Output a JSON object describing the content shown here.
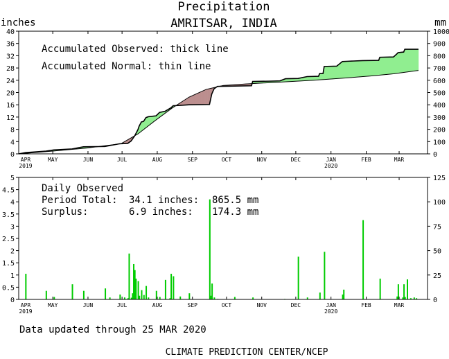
{
  "header": {
    "title": "Precipitation",
    "subtitle": "AMRITSAR, INDIA",
    "left_unit": "inches",
    "right_unit": "mm"
  },
  "months": {
    "labels": [
      "APR",
      "MAY",
      "JUN",
      "JUL",
      "AUG",
      "SEP",
      "OCT",
      "NOV",
      "DEC",
      "JAN",
      "FEB",
      "MAR"
    ],
    "start_year": "2019",
    "jan_year": "2020"
  },
  "chart_data": [
    {
      "type": "area",
      "name": "accumulated",
      "legend": [
        "Accumulated Observed: thick line",
        "Accumulated Normal: thin line"
      ],
      "x_unit": "day index from APR 1 2019",
      "xlim": [
        0,
        360
      ],
      "ylim": [
        0,
        40
      ],
      "ylim_right_mm": [
        0,
        1000
      ],
      "yticks_left": [
        0,
        4,
        8,
        12,
        16,
        20,
        24,
        28,
        32,
        36,
        40
      ],
      "yticks_right": [
        0,
        100,
        200,
        300,
        400,
        500,
        600,
        700,
        800,
        900,
        1000
      ],
      "observed": [
        [
          0,
          0.0
        ],
        [
          6,
          0.4
        ],
        [
          24,
          0.9
        ],
        [
          31,
          1.3
        ],
        [
          47,
          1.6
        ],
        [
          57,
          2.3
        ],
        [
          76,
          2.4
        ],
        [
          89,
          3.3
        ],
        [
          96,
          3.4
        ],
        [
          99,
          4.2
        ],
        [
          102,
          5.8
        ],
        [
          103,
          6.5
        ],
        [
          105,
          7.9
        ],
        [
          106,
          9.0
        ],
        [
          108,
          10.4
        ],
        [
          110,
          10.6
        ],
        [
          112,
          11.8
        ],
        [
          114,
          12.1
        ],
        [
          121,
          12.4
        ],
        [
          124,
          13.5
        ],
        [
          129,
          13.9
        ],
        [
          134,
          15.0
        ],
        [
          136,
          15.7
        ],
        [
          142,
          15.8
        ],
        [
          150,
          16.0
        ],
        [
          168,
          16.1
        ],
        [
          170,
          19.5
        ],
        [
          172,
          21.2
        ],
        [
          175,
          22.0
        ],
        [
          190,
          22.1
        ],
        [
          205,
          22.2
        ],
        [
          206,
          23.6
        ],
        [
          220,
          23.7
        ],
        [
          230,
          23.8
        ],
        [
          235,
          24.5
        ],
        [
          246,
          24.6
        ],
        [
          254,
          25.2
        ],
        [
          264,
          25.3
        ],
        [
          265,
          26.2
        ],
        [
          268,
          26.2
        ],
        [
          269,
          28.5
        ],
        [
          280,
          28.6
        ],
        [
          285,
          30.1
        ],
        [
          290,
          30.2
        ],
        [
          303,
          30.4
        ],
        [
          317,
          30.5
        ],
        [
          318,
          31.5
        ],
        [
          330,
          31.6
        ],
        [
          333,
          32.6
        ],
        [
          334,
          33.0
        ],
        [
          339,
          33.2
        ],
        [
          340,
          34.1
        ],
        [
          352,
          34.1
        ]
      ],
      "normal": [
        [
          0,
          0.0
        ],
        [
          30,
          0.9
        ],
        [
          60,
          1.9
        ],
        [
          90,
          3.3
        ],
        [
          105,
          6.5
        ],
        [
          120,
          10.8
        ],
        [
          135,
          14.9
        ],
        [
          150,
          18.5
        ],
        [
          165,
          21.0
        ],
        [
          180,
          22.3
        ],
        [
          200,
          22.8
        ],
        [
          230,
          23.4
        ],
        [
          260,
          24.0
        ],
        [
          290,
          24.8
        ],
        [
          310,
          25.4
        ],
        [
          330,
          26.1
        ],
        [
          352,
          27.2
        ]
      ]
    },
    {
      "type": "bar",
      "name": "daily",
      "legend_title": "Daily Observed",
      "period_total_label": "Period Total:",
      "period_total_inches": "34.1 inches:",
      "period_total_mm": "865.5 mm",
      "surplus_label": "Surplus:",
      "surplus_inches": "6.9 inches:",
      "surplus_mm": "174.3 mm",
      "ylim": [
        0,
        5
      ],
      "ylim_right_mm": [
        0,
        125
      ],
      "yticks_left": [
        "0",
        "0.5",
        "1",
        "1.5",
        "2",
        "2.5",
        "3",
        "3.5",
        "4",
        "4.5",
        "5"
      ],
      "yticks_right": [
        "0",
        "25",
        "50",
        "75",
        "100",
        "125"
      ],
      "days": [
        6,
        24,
        31,
        47,
        57,
        76,
        80,
        89,
        93,
        96,
        97,
        99,
        100,
        101,
        102,
        103,
        105,
        106,
        108,
        110,
        112,
        114,
        121,
        124,
        129,
        133,
        134,
        136,
        142,
        150,
        168,
        169,
        170,
        172,
        175,
        190,
        206,
        234,
        246,
        254,
        265,
        269,
        285,
        286,
        303,
        318,
        333,
        334,
        338,
        339,
        340,
        342,
        345,
        348,
        350
      ],
      "values": [
        1.05,
        0.35,
        0.1,
        0.62,
        0.35,
        0.45,
        0.08,
        0.2,
        0.08,
        0.05,
        1.88,
        0.07,
        0.25,
        1.45,
        1.2,
        0.85,
        0.75,
        0.15,
        0.38,
        0.18,
        0.55,
        0.08,
        0.35,
        0.1,
        0.8,
        0.05,
        1.05,
        0.95,
        0.12,
        0.25,
        4.1,
        0.15,
        0.65,
        0.08,
        0.02,
        0.1,
        0.08,
        0.02,
        1.75,
        0.08,
        0.28,
        1.95,
        0.2,
        0.4,
        3.25,
        0.85,
        0.12,
        0.62,
        0.08,
        0.62,
        0.1,
        0.82,
        0.05,
        0.08,
        0.05
      ]
    }
  ],
  "colors": {
    "surplus_fill": "#90ee90",
    "deficit_fill": "#bc8f8f",
    "bar": "#00cc00"
  },
  "footer": {
    "updated": "Data updated through 25 MAR 2020",
    "credit": "CLIMATE PREDICTION CENTER/NCEP"
  }
}
